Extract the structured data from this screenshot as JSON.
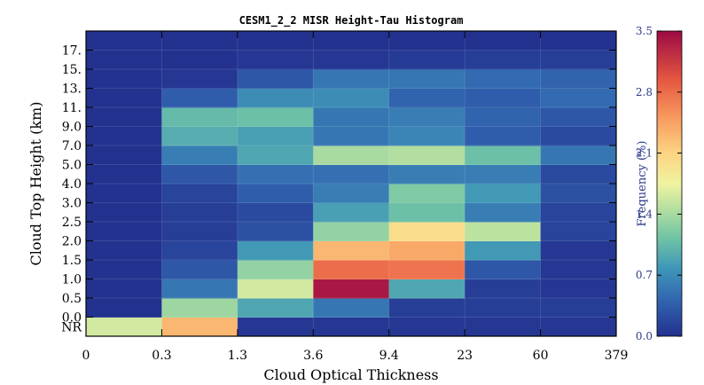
{
  "chart_data": {
    "type": "heatmap",
    "title": "CESM1_2_2 MISR Height-Tau Histogram",
    "xlabel": "Cloud Optical Thickness",
    "ylabel": "Cloud Top Height (km)",
    "x_tick_labels": [
      "0",
      "0.3",
      "1.3",
      "3.6",
      "9.4",
      "23",
      "60",
      "379"
    ],
    "y_tick_labels": [
      "NR",
      "0.0",
      "0.5",
      "1.0",
      "1.5",
      "2.0",
      "2.5",
      "3.0",
      "4.0",
      "5.0",
      "7.0",
      "9.0",
      "11.",
      "13.",
      "15.",
      "17."
    ],
    "colorbar": {
      "label": "Frequency (%)",
      "ticks": [
        "0.0",
        "0.7",
        "1.4",
        "2.1",
        "2.8",
        "3.5"
      ],
      "range": [
        0,
        3.5
      ],
      "colormap": "spectral_r"
    },
    "rows_bottom_to_top": [
      "NR",
      "0.0-0.5",
      "0.5-1.0",
      "1.0-1.5",
      "1.5-2.0",
      "2.0-2.5",
      "2.5-3.0",
      "3.0-4.0",
      "4.0-5.0",
      "5.0-7.0",
      "7.0-9.0",
      "9.0-11",
      "11-13",
      "13-15",
      "15-17",
      "17+"
    ],
    "values": [
      [
        1.6,
        2.3,
        0.05,
        0.05,
        0.05,
        0.05,
        0.05
      ],
      [
        0.0,
        1.35,
        0.9,
        0.55,
        0.1,
        0.1,
        0.1
      ],
      [
        0.0,
        0.55,
        1.6,
        3.4,
        0.9,
        0.1,
        0.05
      ],
      [
        0.0,
        0.3,
        1.3,
        2.8,
        2.75,
        0.3,
        0.05
      ],
      [
        0.0,
        0.15,
        0.8,
        2.3,
        2.4,
        0.8,
        0.05
      ],
      [
        0.0,
        0.1,
        0.25,
        1.3,
        2.0,
        1.5,
        0.15
      ],
      [
        0.0,
        0.1,
        0.2,
        0.85,
        1.1,
        0.6,
        0.15
      ],
      [
        0.0,
        0.15,
        0.35,
        0.6,
        1.2,
        0.8,
        0.25
      ],
      [
        0.0,
        0.3,
        0.5,
        0.5,
        0.6,
        0.6,
        0.2
      ],
      [
        0.0,
        0.6,
        0.9,
        1.4,
        1.45,
        1.1,
        0.55
      ],
      [
        0.0,
        0.95,
        0.85,
        0.55,
        0.65,
        0.35,
        0.2
      ],
      [
        0.0,
        1.05,
        1.1,
        0.55,
        0.6,
        0.4,
        0.3
      ],
      [
        0.0,
        0.35,
        0.7,
        0.7,
        0.4,
        0.35,
        0.45
      ],
      [
        0.0,
        0.05,
        0.3,
        0.55,
        0.55,
        0.45,
        0.4
      ],
      [
        0.0,
        0.0,
        0.05,
        0.05,
        0.08,
        0.1,
        0.1
      ],
      [
        0.0,
        0.0,
        0.0,
        0.0,
        0.0,
        0.0,
        0.0
      ]
    ]
  }
}
